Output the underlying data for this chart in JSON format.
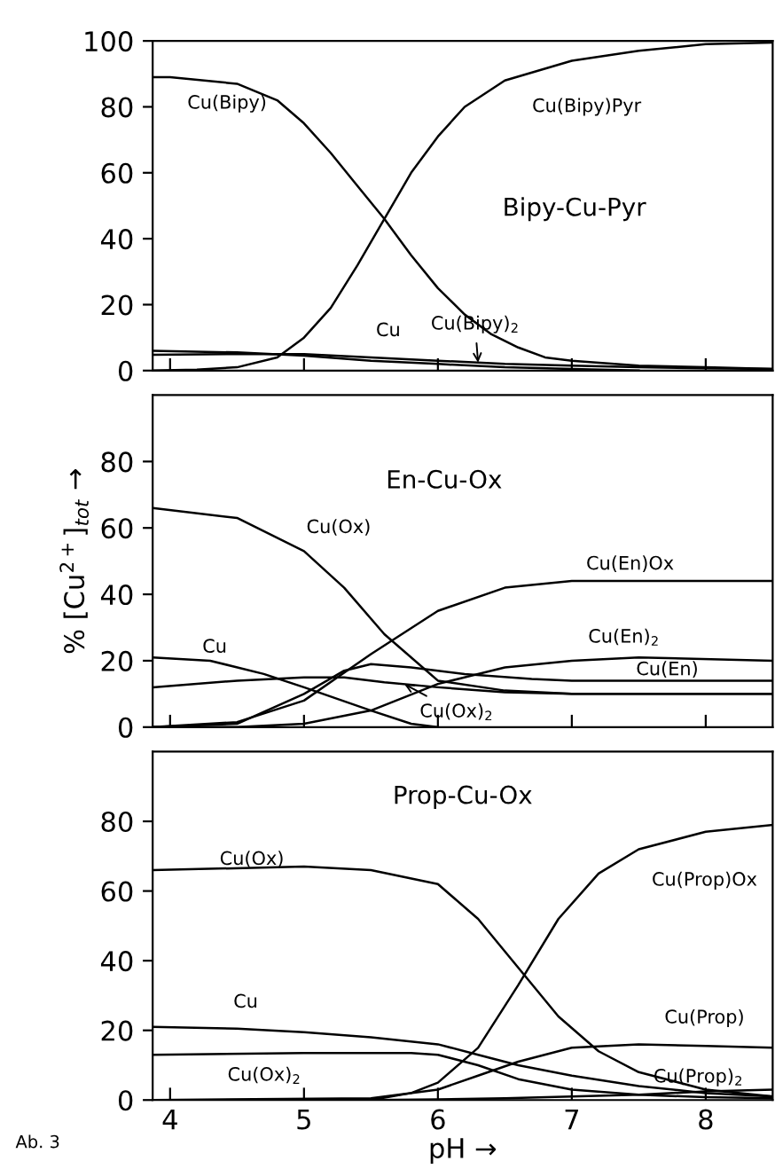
{
  "chart_data": [
    {
      "type": "line",
      "title": "Bipy-Cu-Pyr",
      "xlim": [
        3.87,
        8.5
      ],
      "ylim": [
        0,
        100
      ],
      "xticks": [
        4,
        5,
        6,
        7,
        8
      ],
      "yticks": [
        0,
        20,
        40,
        60,
        80,
        100
      ],
      "tick_labels": "y",
      "series": [
        {
          "name": "Cu(Bipy)",
          "color": "#000000",
          "x": [
            3.87,
            4.0,
            4.5,
            4.8,
            5.0,
            5.2,
            5.4,
            5.6,
            5.8,
            6.0,
            6.2,
            6.4,
            6.6,
            6.8,
            7.0,
            7.5,
            8.0,
            8.5
          ],
          "values": [
            89,
            89,
            87,
            82,
            75,
            66,
            56,
            46,
            35,
            25,
            17,
            11,
            7,
            4,
            3,
            1.5,
            1,
            0.5
          ]
        },
        {
          "name": "Cu(Bipy)Pyr",
          "color": "#000000",
          "x": [
            3.87,
            4.2,
            4.5,
            4.8,
            5.0,
            5.2,
            5.4,
            5.6,
            5.8,
            6.0,
            6.2,
            6.5,
            7.0,
            7.5,
            8.0,
            8.5
          ],
          "values": [
            0,
            0.3,
            1,
            4,
            10,
            19,
            32,
            46,
            60,
            71,
            80,
            88,
            94,
            97,
            99,
            99.5
          ]
        },
        {
          "name": "Cu",
          "color": "#000000",
          "x": [
            3.87,
            4.5,
            5.0,
            5.5,
            6.0,
            6.5,
            7.0,
            7.5
          ],
          "values": [
            6,
            5.5,
            4.5,
            3,
            2,
            1,
            0.5,
            0
          ]
        },
        {
          "name": "Cu(Bipy)$_{2}$",
          "color": "#000000",
          "x": [
            3.87,
            4.5,
            5.0,
            5.5,
            6.0,
            6.5,
            7.0,
            7.5,
            8.0,
            8.5
          ],
          "values": [
            4.8,
            5,
            5,
            4,
            3,
            2,
            1.5,
            1,
            0.7,
            0.5
          ]
        }
      ]
    },
    {
      "type": "line",
      "title": "En-Cu-Ox",
      "ylabel": "% [Cu$^{2+}$]$_{tot}$ →",
      "xlim": [
        3.87,
        8.5
      ],
      "ylim": [
        0,
        100
      ],
      "xticks": [
        4,
        5,
        6,
        7,
        8
      ],
      "yticks": [
        0,
        20,
        40,
        60,
        80
      ],
      "tick_labels": "y",
      "series": [
        {
          "name": "Cu(Ox)",
          "color": "#000000",
          "x": [
            3.87,
            4.5,
            5.0,
            5.3,
            5.6,
            6.0,
            6.5,
            7.0,
            8.5
          ],
          "values": [
            66,
            63,
            53,
            42,
            28,
            14,
            11,
            10,
            10
          ]
        },
        {
          "name": "Cu(En)Ox",
          "color": "#000000",
          "x": [
            3.87,
            4.5,
            5.0,
            5.5,
            6.0,
            6.5,
            7.0,
            8.5
          ],
          "values": [
            0,
            1.5,
            8,
            22,
            35,
            42,
            44,
            44
          ]
        },
        {
          "name": "Cu",
          "color": "#000000",
          "x": [
            3.87,
            4.3,
            4.7,
            5.0,
            5.5,
            5.8,
            6.0
          ],
          "values": [
            21,
            20,
            16,
            12,
            5,
            1,
            0
          ]
        },
        {
          "name": "Cu(Ox)$_{2}$",
          "color": "#000000",
          "x": [
            3.87,
            4.5,
            5.0,
            5.3,
            5.6,
            6.0,
            6.5,
            7.0,
            8.5
          ],
          "values": [
            12,
            14,
            15,
            15,
            13.5,
            12,
            10.5,
            10,
            10
          ]
        },
        {
          "name": "Cu(En)",
          "color": "#000000",
          "x": [
            3.87,
            4.5,
            5.0,
            5.3,
            5.5,
            5.8,
            6.2,
            6.7,
            7.0,
            8.5
          ],
          "values": [
            0,
            1,
            10,
            17,
            19,
            18,
            16,
            14.5,
            14,
            14
          ]
        },
        {
          "name": "Cu(En)$_{2}$",
          "color": "#000000",
          "x": [
            3.87,
            4.5,
            5.0,
            5.5,
            6.0,
            6.5,
            7.0,
            7.5,
            8.5
          ],
          "values": [
            0,
            0,
            1,
            5,
            13,
            18,
            20,
            21,
            20
          ]
        }
      ]
    },
    {
      "type": "line",
      "title": "Prop-Cu-Ox",
      "xlabel": "pH →",
      "xlim": [
        3.87,
        8.5
      ],
      "ylim": [
        0,
        100
      ],
      "xticks": [
        4,
        5,
        6,
        7,
        8
      ],
      "yticks": [
        0,
        20,
        40,
        60,
        80
      ],
      "series": [
        {
          "name": "Cu(Ox)",
          "color": "#000000",
          "x": [
            3.87,
            5.0,
            5.5,
            6.0,
            6.3,
            6.6,
            6.9,
            7.2,
            7.5,
            8.0,
            8.5
          ],
          "values": [
            66,
            67,
            66,
            62,
            52,
            38,
            24,
            14,
            8,
            3,
            1
          ]
        },
        {
          "name": "Cu(Prop)Ox",
          "color": "#000000",
          "x": [
            3.87,
            5.5,
            5.8,
            6.0,
            6.3,
            6.6,
            6.9,
            7.2,
            7.5,
            8.0,
            8.5
          ],
          "values": [
            0,
            0,
            2,
            5,
            15,
            33,
            52,
            65,
            72,
            77,
            79
          ]
        },
        {
          "name": "Cu",
          "color": "#000000",
          "x": [
            3.87,
            4.5,
            5.0,
            5.5,
            6.0,
            6.3,
            6.6,
            7.0,
            7.5,
            8.0,
            8.5
          ],
          "values": [
            21,
            20.5,
            19.5,
            18,
            16,
            13,
            10,
            7,
            4,
            2,
            1
          ]
        },
        {
          "name": "Cu(Ox)$_{2}$",
          "color": "#000000",
          "x": [
            3.87,
            5.0,
            5.8,
            6.0,
            6.3,
            6.6,
            7.0,
            7.5,
            8.0,
            8.5
          ],
          "values": [
            13,
            13.5,
            13.5,
            13,
            10,
            6,
            3,
            1.5,
            0.8,
            0.5
          ]
        },
        {
          "name": "Cu(Prop)",
          "color": "#000000",
          "x": [
            3.87,
            5.5,
            6.0,
            6.3,
            6.6,
            7.0,
            7.5,
            8.0,
            8.5
          ],
          "values": [
            0,
            0.5,
            3,
            7,
            11,
            15,
            16,
            15.5,
            15
          ]
        },
        {
          "name": "Cu(Prop)$_{2}$",
          "color": "#000000",
          "x": [
            3.87,
            5.5,
            6.0,
            6.5,
            7.0,
            7.5,
            8.0,
            8.5
          ],
          "values": [
            0,
            0,
            0.2,
            0.5,
            1,
            1.5,
            2.5,
            3
          ]
        }
      ],
      "annotations": [
        "Ab. 3"
      ]
    }
  ]
}
